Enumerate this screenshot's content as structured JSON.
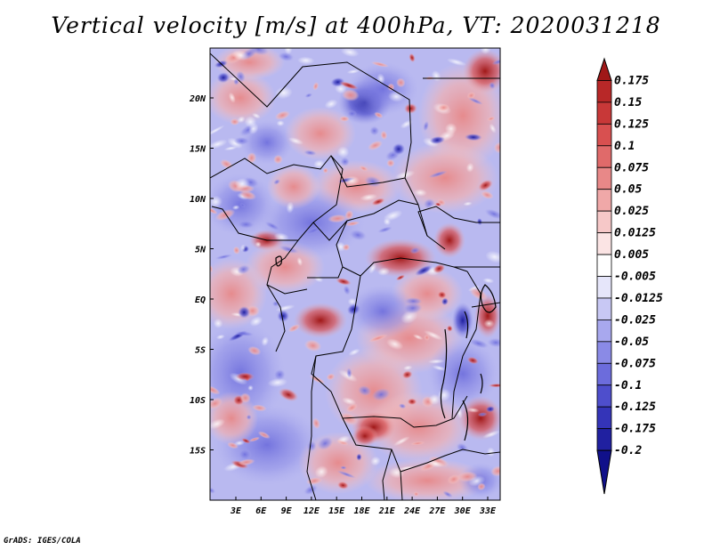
{
  "title": "Vertical velocity [m/s] at 400hPa, VT: 2020031218",
  "credit": "GrADS: IGES/COLA",
  "map": {
    "variable": "Vertical velocity",
    "units": "m/s",
    "level": "400hPa",
    "valid_time": "2020031218",
    "lat_labels": [
      "20N",
      "15N",
      "10N",
      "5N",
      "EQ",
      "5S",
      "10S",
      "15S"
    ],
    "lon_labels": [
      "3E",
      "6E",
      "9E",
      "12E",
      "15E",
      "18E",
      "21E",
      "24E",
      "27E",
      "30E",
      "33E"
    ]
  },
  "colorbar": {
    "labels": [
      "0.175",
      "0.15",
      "0.125",
      "0.1",
      "0.075",
      "0.05",
      "0.025",
      "0.0125",
      "0.005",
      "-0.005",
      "-0.0125",
      "-0.025",
      "-0.05",
      "-0.075",
      "-0.1",
      "-0.125",
      "-0.175",
      "-0.2"
    ],
    "colors": [
      "#a01818",
      "#b82828",
      "#c83838",
      "#d85050",
      "#e06a6a",
      "#e88888",
      "#f0a8a8",
      "#f6c8c8",
      "#fbe4e4",
      "#ffffff",
      "#e6e6fa",
      "#c8c8f4",
      "#a8a8ee",
      "#8a8ae6",
      "#6c6cdc",
      "#4e4ecc",
      "#3434b8",
      "#2020a0",
      "#10108a"
    ]
  },
  "field_colors": {
    "base": "#b9b9f0",
    "strong_up": "#b22222",
    "weak_up": "#f2b0b0",
    "weak_down": "#9a9ae8",
    "strong_down": "#3030b0",
    "borders": "#000000"
  }
}
